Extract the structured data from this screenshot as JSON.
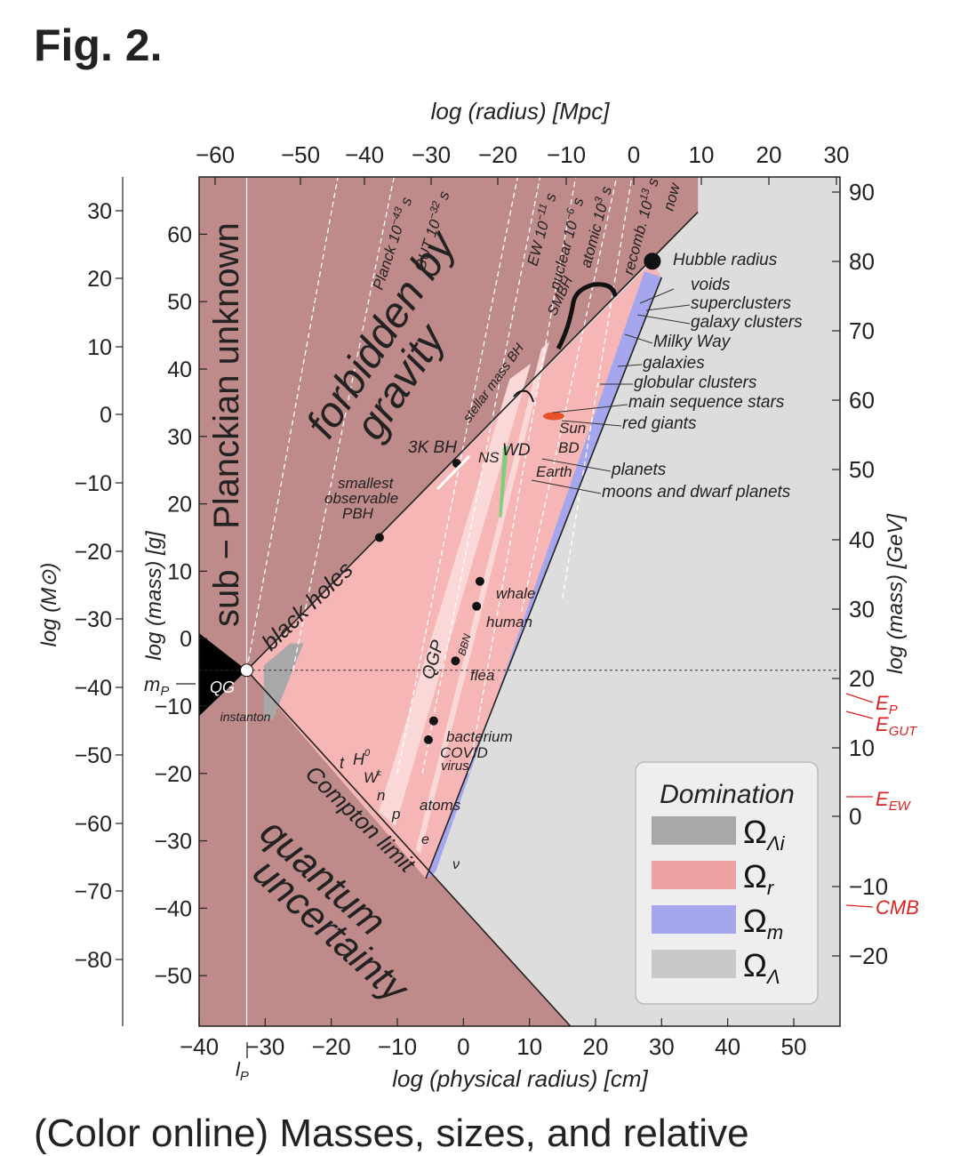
{
  "page": {
    "figure_label": "Fig. 2.",
    "caption": "(Color online) Masses, sizes, and relative"
  },
  "chart_data": {
    "type": "scatter",
    "colors": {
      "forbidden": "#bf8a8a",
      "radiation": "#f7b6b6",
      "radiation_light": "#fbd8d8",
      "matter": "#a6a6ee",
      "lambda": "#dddddd",
      "lambda_i": "#a8a8a8",
      "qg": "#000000",
      "ep_red": "#dd2222",
      "sun_orange": "#e8502a",
      "green": "#7ccf7c"
    },
    "axes": {
      "bottom": {
        "label": "log (physical radius) [cm]",
        "ticks": [
          "−40",
          "−30",
          "−20",
          "−10",
          "0",
          "10",
          "20",
          "30",
          "40",
          "50"
        ],
        "lim": [
          -40,
          57
        ]
      },
      "top": {
        "label": "log (radius) [Mpc]",
        "ticks": [
          "−60",
          "−50",
          "−40",
          "−30",
          "−20",
          "−10",
          "0",
          "10",
          "20",
          "30"
        ]
      },
      "left_inner": {
        "label": "log (mass) [g]",
        "ticks": [
          "60",
          "50",
          "40",
          "30",
          "20",
          "10",
          "0",
          "−10",
          "−20",
          "−30",
          "−40",
          "−50"
        ],
        "lim": [
          -57.5,
          68.5
        ]
      },
      "left_outer": {
        "label": "log (M⊙)",
        "ticks": [
          "30",
          "20",
          "10",
          "0",
          "−10",
          "−20",
          "−30",
          "−40",
          "−50",
          "−60",
          "−70",
          "−80"
        ]
      },
      "right": {
        "label": "log (mass) [GeV]",
        "ticks": [
          "90",
          "80",
          "70",
          "60",
          "50",
          "40",
          "30",
          "20",
          "10",
          "0",
          "−10",
          "−20"
        ]
      }
    },
    "regions": [
      {
        "name": "sub-Planckian",
        "label": "sub − Planckian unknown"
      },
      {
        "name": "forbidden",
        "label": [
          "forbidden by",
          "gravity"
        ]
      },
      {
        "name": "quantum",
        "label": [
          "quantum",
          "uncertainty"
        ]
      },
      {
        "name": "black-holes-line",
        "label": "black holes"
      },
      {
        "name": "compton-line",
        "label": "Compton limit"
      },
      {
        "name": "qg",
        "label": "QG"
      },
      {
        "name": "instanton",
        "label": "instanton"
      },
      {
        "name": "qgp",
        "label": "QGP"
      },
      {
        "name": "bbn",
        "label": "BBN"
      }
    ],
    "epoch_lines": [
      {
        "label": "Planck 10",
        "exp": "−43",
        "unit": "s"
      },
      {
        "label": "GUT 10",
        "exp": "−32",
        "unit": "s"
      },
      {
        "label": "EW 10",
        "exp": "−11",
        "unit": "s"
      },
      {
        "label": "nuclear 10",
        "exp": "−6",
        "unit": "s"
      },
      {
        "label": "atomic 10",
        "exp": "3",
        "unit": "s"
      },
      {
        "label": "recomb. 10",
        "exp": "13",
        "unit": "s"
      },
      {
        "label": "now",
        "exp": "",
        "unit": ""
      }
    ],
    "points": [
      {
        "name": "Hubble radius",
        "x": 28.6,
        "y": 56.0
      },
      {
        "name": "3K BH",
        "x": -1.0,
        "y": 26.0
      },
      {
        "name": "smallest observable PBH",
        "x": -12.7,
        "y": 15.0
      },
      {
        "name": "whale",
        "x": 2.5,
        "y": 8.5
      },
      {
        "name": "human",
        "x": 2.0,
        "y": 4.8
      },
      {
        "name": "flea",
        "x": -1.2,
        "y": -3.3
      },
      {
        "name": "bacterium",
        "x": -4.5,
        "y": -12.2
      },
      {
        "name": "COVID",
        "x": -5.3,
        "y": -15.0
      },
      {
        "name": "planck point",
        "x": -32.8,
        "y": -4.7
      }
    ],
    "object_labels": [
      "Hubble radius",
      "voids",
      "superclusters",
      "galaxy clusters",
      "Milky Way",
      "galaxies",
      "globular clusters",
      "main sequence stars",
      "red giants",
      "Sun",
      "BD",
      "WD",
      "NS",
      "Earth",
      "planets",
      "moons and dwarf planets",
      "stellar mass BH",
      "SMBH",
      "3K BH",
      "smallest",
      "observable",
      "PBH",
      "whale",
      "human",
      "flea",
      "bacterium",
      "COVID",
      "virus",
      "atoms",
      "t",
      "H",
      "0",
      "W",
      "±",
      "n",
      "p",
      "e",
      "ν"
    ],
    "markers": {
      "mP": "m",
      "mP_sub": "P",
      "lP": "l",
      "lP_sub": "P",
      "EP": "E",
      "EP_sub": "P",
      "EGUT": "E",
      "EGUT_sub": "GUT",
      "EEW": "E",
      "EEW_sub": "EW",
      "CMB": "CMB"
    },
    "legend": {
      "title": "Domination",
      "placement": "bottom-right",
      "entries": [
        {
          "label": "Ω",
          "sub": "Λi",
          "color": "#a8a8a8"
        },
        {
          "label": "Ω",
          "sub": "r",
          "color": "#f0a2a2"
        },
        {
          "label": "Ω",
          "sub": "m",
          "color": "#a6a6ee"
        },
        {
          "label": "Ω",
          "sub": "Λ",
          "color": "#c8c8c8"
        }
      ]
    },
    "grid": false
  }
}
